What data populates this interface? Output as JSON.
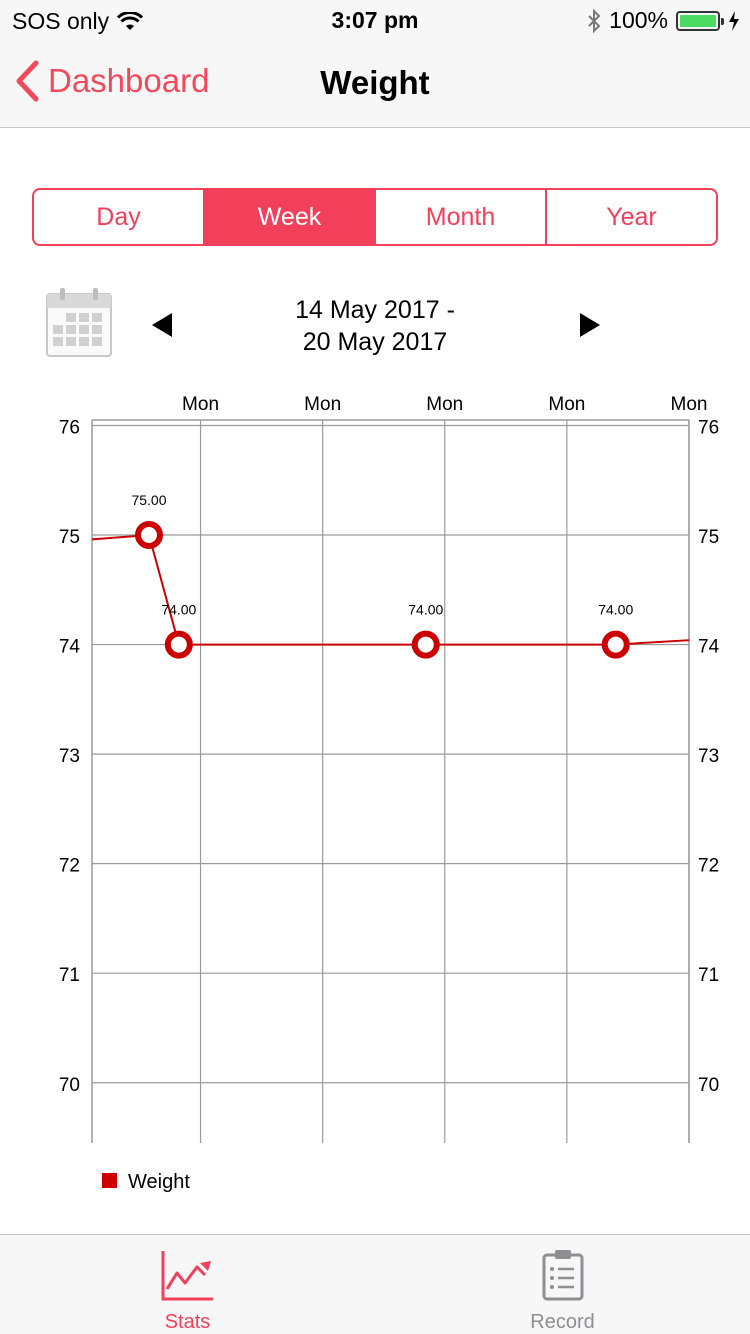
{
  "status_bar": {
    "carrier": "SOS only",
    "time": "3:07 pm",
    "battery": "100%"
  },
  "nav": {
    "back_label": "Dashboard",
    "title": "Weight"
  },
  "segments": [
    {
      "label": "Day",
      "active": false
    },
    {
      "label": "Week",
      "active": true
    },
    {
      "label": "Month",
      "active": false
    },
    {
      "label": "Year",
      "active": false
    }
  ],
  "date_range": {
    "line1": "14 May 2017 -",
    "line2": "20 May 2017"
  },
  "colors": {
    "accent": "#f2405a",
    "series": "#cc0000",
    "grid": "#9a9a9a"
  },
  "chart_data": {
    "type": "line",
    "title": "",
    "x_tick_labels": [
      "Mon",
      "Mon",
      "Mon",
      "Mon",
      "Mon"
    ],
    "y_ticks": [
      70,
      71,
      72,
      73,
      74,
      75,
      76
    ],
    "ylim": [
      69.45,
      76.05
    ],
    "xlim": [
      0,
      11
    ],
    "series": [
      {
        "name": "Weight",
        "color": "#cc0000",
        "points": [
          {
            "x": 0.0,
            "y": 74.96,
            "marker": false,
            "label": ""
          },
          {
            "x": 1.05,
            "y": 75.0,
            "marker": true,
            "label": "75.00"
          },
          {
            "x": 1.6,
            "y": 74.0,
            "marker": true,
            "label": "74.00"
          },
          {
            "x": 6.15,
            "y": 74.0,
            "marker": true,
            "label": "74.00"
          },
          {
            "x": 9.65,
            "y": 74.0,
            "marker": true,
            "label": "74.00"
          },
          {
            "x": 11.0,
            "y": 74.04,
            "marker": false,
            "label": ""
          }
        ]
      }
    ],
    "x_ticks": [
      2,
      4.25,
      6.5,
      8.75,
      11
    ],
    "grid": true,
    "legend": "bottom-left"
  },
  "tabs": [
    {
      "label": "Stats",
      "icon": "stats-chart-icon",
      "active": true
    },
    {
      "label": "Record",
      "icon": "clipboard-icon",
      "active": false
    }
  ]
}
